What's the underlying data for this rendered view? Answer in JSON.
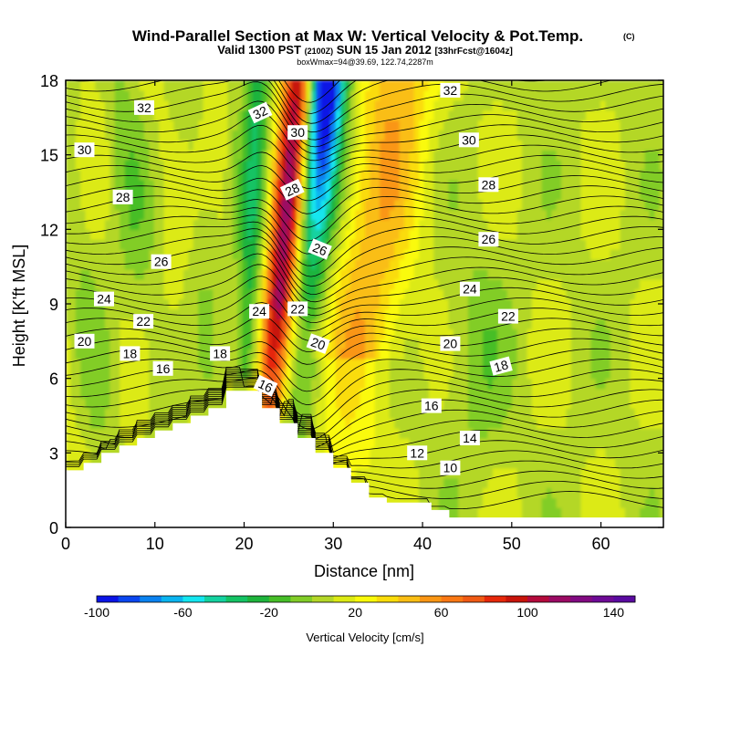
{
  "chart_data": {
    "type": "heatmap",
    "title": "Wind-Parallel Section at Max W: Vertical Velocity & Pot.Temp.",
    "title_mark": "(C)",
    "subtitle_parts": [
      "Valid 1300 PST",
      "(2100Z)",
      "SUN 15 Jan 2012",
      "[33hrFcst@1604z]"
    ],
    "subtitle2": "boxWmax=94@39.69, 122.74,2287m",
    "xlabel": "Distance [nm]",
    "ylabel": "Height [K'ft MSL]",
    "xlim": [
      0,
      67
    ],
    "ylim": [
      0,
      18
    ],
    "x_ticks": [
      0,
      10,
      20,
      30,
      40,
      50,
      60
    ],
    "x_tick_labels": [
      "0",
      "10",
      "20",
      "30",
      "40",
      "50",
      "60"
    ],
    "y_ticks": [
      0,
      3,
      6,
      9,
      12,
      15,
      18
    ],
    "y_tick_labels": [
      "0",
      "3",
      "6",
      "9",
      "12",
      "15",
      "18"
    ],
    "colorbar": {
      "title": "Vertical Velocity [cm/s]",
      "min": -100,
      "max": 150,
      "step": 10,
      "tick_values": [
        -100,
        -60,
        -20,
        20,
        60,
        100,
        140
      ],
      "tick_labels": [
        "-100",
        "-60",
        "-20",
        "20",
        "60",
        "100",
        "140"
      ],
      "colors": [
        "#0a14e6",
        "#0a46f0",
        "#0a82f0",
        "#0ab4f0",
        "#14e6f0",
        "#14d2a0",
        "#14c364",
        "#1eb43c",
        "#46be28",
        "#82cd28",
        "#b4d728",
        "#dcea14",
        "#fafa0a",
        "#fadc0a",
        "#fabe14",
        "#fa9614",
        "#fa7814",
        "#f05a14",
        "#e6280a",
        "#c8140a",
        "#b40a3c",
        "#9b0a64",
        "#820a82",
        "#6e0a96",
        "#5a0aa0"
      ]
    },
    "isentrope_labels": [
      {
        "text": "32",
        "x": 8.8,
        "y": 16.9,
        "angle": 0
      },
      {
        "text": "30",
        "x": 2.1,
        "y": 15.2,
        "angle": 0
      },
      {
        "text": "28",
        "x": 6.4,
        "y": 13.3,
        "angle": 0
      },
      {
        "text": "26",
        "x": 10.7,
        "y": 10.7,
        "angle": 0
      },
      {
        "text": "24",
        "x": 4.3,
        "y": 9.2,
        "angle": 0
      },
      {
        "text": "22",
        "x": 8.7,
        "y": 8.3,
        "angle": 0
      },
      {
        "text": "20",
        "x": 2.1,
        "y": 7.5,
        "angle": 0
      },
      {
        "text": "18",
        "x": 7.2,
        "y": 7.0,
        "angle": 0
      },
      {
        "text": "16",
        "x": 10.9,
        "y": 6.4,
        "angle": 0
      },
      {
        "text": "18",
        "x": 17.3,
        "y": 7.0,
        "angle": 0
      },
      {
        "text": "32",
        "x": 21.8,
        "y": 16.7,
        "angle": -25
      },
      {
        "text": "30",
        "x": 26.0,
        "y": 15.9,
        "angle": 0
      },
      {
        "text": "28",
        "x": 25.4,
        "y": 13.6,
        "angle": -25
      },
      {
        "text": "26",
        "x": 28.5,
        "y": 11.2,
        "angle": 22
      },
      {
        "text": "24",
        "x": 21.7,
        "y": 8.7,
        "angle": 0
      },
      {
        "text": "22",
        "x": 26.0,
        "y": 8.8,
        "angle": 0
      },
      {
        "text": "20",
        "x": 28.3,
        "y": 7.4,
        "angle": 20
      },
      {
        "text": "16",
        "x": 22.4,
        "y": 5.7,
        "angle": 25
      },
      {
        "text": "32",
        "x": 43.1,
        "y": 17.6,
        "angle": 0
      },
      {
        "text": "30",
        "x": 45.2,
        "y": 15.6,
        "angle": 0
      },
      {
        "text": "28",
        "x": 47.4,
        "y": 13.8,
        "angle": 0
      },
      {
        "text": "26",
        "x": 47.4,
        "y": 11.6,
        "angle": 0
      },
      {
        "text": "24",
        "x": 45.3,
        "y": 9.6,
        "angle": 0
      },
      {
        "text": "22",
        "x": 49.6,
        "y": 8.5,
        "angle": 0
      },
      {
        "text": "20",
        "x": 43.1,
        "y": 7.4,
        "angle": 0
      },
      {
        "text": "18",
        "x": 48.8,
        "y": 6.5,
        "angle": -15
      },
      {
        "text": "16",
        "x": 41.0,
        "y": 4.9,
        "angle": 0
      },
      {
        "text": "14",
        "x": 45.3,
        "y": 3.6,
        "angle": 0
      },
      {
        "text": "12",
        "x": 39.4,
        "y": 3.0,
        "angle": 0
      },
      {
        "text": "10",
        "x": 43.1,
        "y": 2.4,
        "angle": 0
      }
    ],
    "grid": false
  }
}
